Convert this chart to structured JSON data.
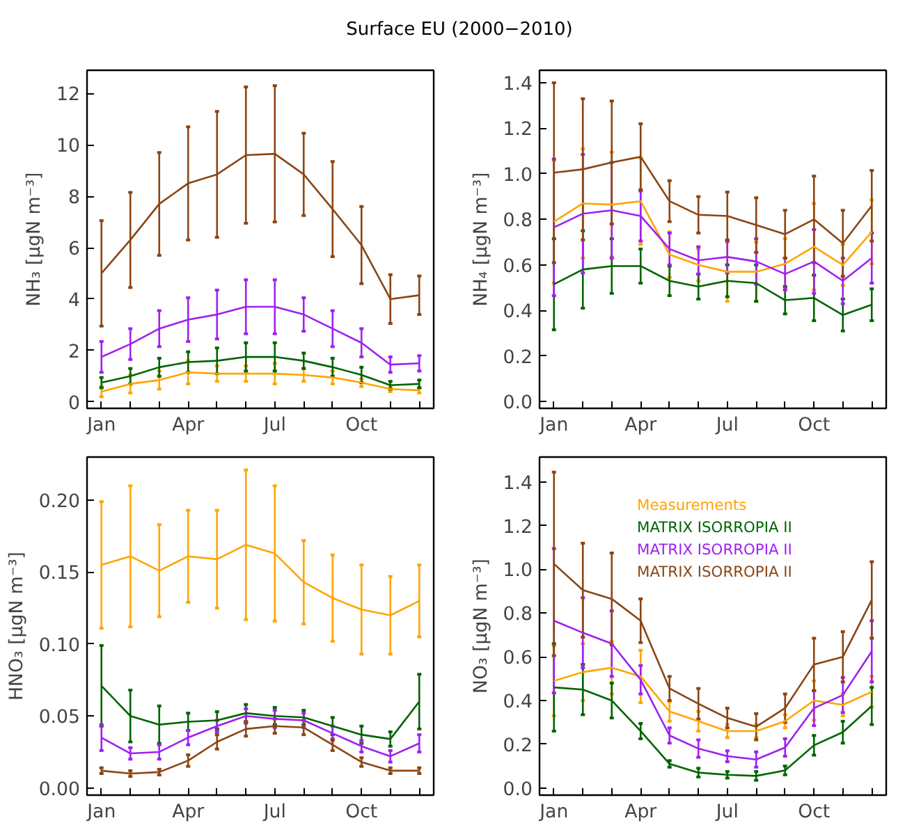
{
  "chart_data": [
    {
      "type": "line",
      "title": "Surface EU (2000−2010)",
      "ylabel": "NH₃ [μgN m⁻³]",
      "categories": [
        "Jan",
        null,
        null,
        "Apr",
        null,
        null,
        "Jul",
        null,
        null,
        "Oct",
        null,
        null
      ],
      "ylim": [
        -0.25,
        12.9
      ],
      "yticks": [
        0,
        2,
        4,
        6,
        8,
        10,
        12
      ],
      "grid": false,
      "legend": false,
      "marker": "none",
      "line_style": "solid",
      "series": [
        {
          "color": "#ffa500",
          "values": [
            0.4,
            0.7,
            0.85,
            1.15,
            1.1,
            1.1,
            1.1,
            1.05,
            0.95,
            0.75,
            0.5,
            0.45
          ],
          "errors": [
            0.2,
            0.35,
            0.35,
            0.45,
            0.3,
            0.3,
            0.4,
            0.25,
            0.25,
            0.15,
            0.1,
            0.1
          ]
        },
        {
          "color": "#006400",
          "values": [
            0.75,
            1.0,
            1.35,
            1.55,
            1.6,
            1.75,
            1.75,
            1.6,
            1.35,
            1.05,
            0.65,
            0.7
          ],
          "errors": [
            0.2,
            0.3,
            0.35,
            0.4,
            0.5,
            0.55,
            0.55,
            0.3,
            0.35,
            0.3,
            0.15,
            0.15
          ]
        },
        {
          "color": "#a020f0",
          "values": [
            1.75,
            2.25,
            2.85,
            3.2,
            3.4,
            3.7,
            3.7,
            3.4,
            2.85,
            2.3,
            1.45,
            1.5
          ],
          "errors": [
            0.6,
            0.6,
            0.7,
            0.85,
            0.95,
            1.05,
            1.05,
            0.65,
            0.7,
            0.55,
            0.3,
            0.3
          ]
        },
        {
          "color": "#8b4513",
          "values": [
            5.0,
            6.3,
            7.7,
            8.5,
            8.85,
            9.6,
            9.65,
            8.85,
            7.5,
            6.1,
            4.0,
            4.15
          ],
          "errors": [
            2.05,
            1.85,
            2.0,
            2.2,
            2.45,
            2.65,
            2.65,
            1.6,
            1.85,
            1.5,
            0.95,
            0.75
          ]
        }
      ]
    },
    {
      "type": "line",
      "ylabel": "NH₄ [μgN m⁻³]",
      "categories": [
        "Jan",
        null,
        null,
        "Apr",
        null,
        null,
        "Jul",
        null,
        null,
        "Oct",
        null,
        null
      ],
      "ylim": [
        -0.03,
        1.455
      ],
      "yticks": [
        {
          "value": 0,
          "label": "0.0"
        },
        {
          "value": 0.2,
          "label": "0.2"
        },
        {
          "value": 0.4,
          "label": "0.4"
        },
        {
          "value": 0.6,
          "label": "0.6"
        },
        {
          "value": 0.8,
          "label": "0.8"
        },
        {
          "value": 1.0,
          "label": "1.0"
        },
        {
          "value": 1.2,
          "label": "1.2"
        },
        {
          "value": 1.4,
          "label": "1.4"
        }
      ],
      "grid": false,
      "legend": false,
      "marker": "none",
      "line_style": "solid",
      "series": [
        {
          "color": "#ffa500",
          "values": [
            0.79,
            0.87,
            0.865,
            0.88,
            0.645,
            0.6,
            0.57,
            0.57,
            0.605,
            0.68,
            0.6,
            0.745
          ],
          "errors": [
            0.27,
            0.24,
            0.23,
            0.19,
            0.1,
            0.07,
            0.13,
            0.13,
            0.11,
            0.19,
            0.09,
            0.14
          ]
        },
        {
          "color": "#006400",
          "values": [
            0.515,
            0.58,
            0.595,
            0.595,
            0.53,
            0.505,
            0.53,
            0.52,
            0.445,
            0.455,
            0.38,
            0.425
          ],
          "errors": [
            0.2,
            0.17,
            0.12,
            0.075,
            0.065,
            0.055,
            0.07,
            0.08,
            0.06,
            0.1,
            0.07,
            0.07
          ]
        },
        {
          "color": "#a020f0",
          "values": [
            0.765,
            0.825,
            0.84,
            0.815,
            0.67,
            0.62,
            0.635,
            0.615,
            0.56,
            0.615,
            0.53,
            0.63
          ],
          "errors": [
            0.3,
            0.26,
            0.21,
            0.11,
            0.07,
            0.06,
            0.07,
            0.1,
            0.07,
            0.14,
            0.1,
            0.11
          ]
        },
        {
          "color": "#8b4513",
          "values": [
            1.005,
            1.02,
            1.05,
            1.075,
            0.88,
            0.82,
            0.815,
            0.775,
            0.735,
            0.8,
            0.695,
            0.86
          ],
          "errors": [
            0.395,
            0.31,
            0.27,
            0.145,
            0.09,
            0.08,
            0.105,
            0.12,
            0.105,
            0.19,
            0.145,
            0.155
          ]
        }
      ]
    },
    {
      "type": "line",
      "ylabel": "HNO₃ [μgN m⁻³]",
      "categories": [
        "Jan",
        null,
        null,
        "Apr",
        null,
        null,
        "Jul",
        null,
        null,
        "Oct",
        null,
        null
      ],
      "ylim": [
        -0.005,
        0.23
      ],
      "yticks": [
        {
          "value": 0,
          "label": "0.00"
        },
        {
          "value": 0.05,
          "label": "0.05"
        },
        {
          "value": 0.1,
          "label": "0.10"
        },
        {
          "value": 0.15,
          "label": "0.15"
        },
        {
          "value": 0.2,
          "label": "0.20"
        }
      ],
      "grid": false,
      "legend": false,
      "marker": "none",
      "line_style": "solid",
      "series": [
        {
          "color": "#ffa500",
          "values": [
            0.155,
            0.161,
            0.151,
            0.161,
            0.159,
            0.169,
            0.163,
            0.143,
            0.132,
            0.124,
            0.12,
            0.13
          ],
          "errors": [
            0.044,
            0.049,
            0.032,
            0.032,
            0.034,
            0.052,
            0.047,
            0.029,
            0.03,
            0.031,
            0.027,
            0.025
          ]
        },
        {
          "color": "#006400",
          "values": [
            0.071,
            0.05,
            0.044,
            0.046,
            0.047,
            0.052,
            0.05,
            0.049,
            0.043,
            0.037,
            0.034,
            0.06
          ],
          "errors": [
            0.028,
            0.018,
            0.013,
            0.006,
            0.006,
            0.006,
            0.006,
            0.005,
            0.006,
            0.006,
            0.005,
            0.019
          ]
        },
        {
          "color": "#a020f0",
          "values": [
            0.035,
            0.024,
            0.025,
            0.035,
            0.043,
            0.05,
            0.048,
            0.047,
            0.038,
            0.029,
            0.022,
            0.031
          ],
          "errors": [
            0.009,
            0.004,
            0.005,
            0.005,
            0.004,
            0.005,
            0.006,
            0.005,
            0.005,
            0.004,
            0.004,
            0.006
          ]
        },
        {
          "color": "#8b4513",
          "values": [
            0.012,
            0.01,
            0.011,
            0.019,
            0.032,
            0.041,
            0.043,
            0.042,
            0.03,
            0.018,
            0.012,
            0.012
          ],
          "errors": [
            0.002,
            0.002,
            0.002,
            0.004,
            0.005,
            0.005,
            0.005,
            0.005,
            0.004,
            0.003,
            0.002,
            0.002
          ]
        }
      ]
    },
    {
      "type": "line",
      "ylabel": "NO₃ [μgN m⁻³]",
      "categories": [
        "Jan",
        null,
        null,
        "Apr",
        null,
        null,
        "Jul",
        null,
        null,
        "Oct",
        null,
        null
      ],
      "ylim": [
        -0.033,
        1.514
      ],
      "yticks": [
        {
          "value": 0,
          "label": "0.0"
        },
        {
          "value": 0.2,
          "label": "0.2"
        },
        {
          "value": 0.4,
          "label": "0.4"
        },
        {
          "value": 0.6,
          "label": "0.6"
        },
        {
          "value": 0.8,
          "label": "0.8"
        },
        {
          "value": 1.0,
          "label": "1.0"
        },
        {
          "value": 1.2,
          "label": "1.2"
        },
        {
          "value": 1.4,
          "label": "1.4"
        }
      ],
      "grid": false,
      "legend": "top right",
      "marker": "none",
      "line_style": "solid",
      "series": [
        {
          "name": "Measurements",
          "color": "#ffa500",
          "values": [
            0.49,
            0.53,
            0.55,
            0.51,
            0.35,
            0.305,
            0.26,
            0.26,
            0.305,
            0.4,
            0.38,
            0.44
          ],
          "errors": [
            0.16,
            0.13,
            0.12,
            0.12,
            0.045,
            0.045,
            0.03,
            0.03,
            0.03,
            0.09,
            0.05,
            0.07
          ]
        },
        {
          "name": "MATRIX ISORROPIA II",
          "color": "#006400",
          "values": [
            0.46,
            0.45,
            0.4,
            0.26,
            0.11,
            0.07,
            0.06,
            0.055,
            0.08,
            0.195,
            0.255,
            0.375
          ],
          "errors": [
            0.2,
            0.115,
            0.08,
            0.035,
            0.015,
            0.02,
            0.015,
            0.02,
            0.02,
            0.045,
            0.05,
            0.085
          ]
        },
        {
          "name": "MATRIX ISORROPIA II",
          "color": "#a020f0",
          "values": [
            0.765,
            0.71,
            0.66,
            0.495,
            0.24,
            0.18,
            0.145,
            0.13,
            0.185,
            0.365,
            0.425,
            0.625
          ],
          "errors": [
            0.33,
            0.16,
            0.15,
            0.065,
            0.035,
            0.04,
            0.025,
            0.035,
            0.04,
            0.08,
            0.08,
            0.14
          ]
        },
        {
          "name": "MATRIX ISORROPIA II",
          "color": "#8b4513",
          "values": [
            1.025,
            0.905,
            0.865,
            0.765,
            0.455,
            0.385,
            0.32,
            0.28,
            0.365,
            0.565,
            0.6,
            0.86
          ],
          "errors": [
            0.42,
            0.215,
            0.21,
            0.1,
            0.055,
            0.07,
            0.045,
            0.06,
            0.065,
            0.12,
            0.115,
            0.175
          ]
        }
      ]
    }
  ]
}
